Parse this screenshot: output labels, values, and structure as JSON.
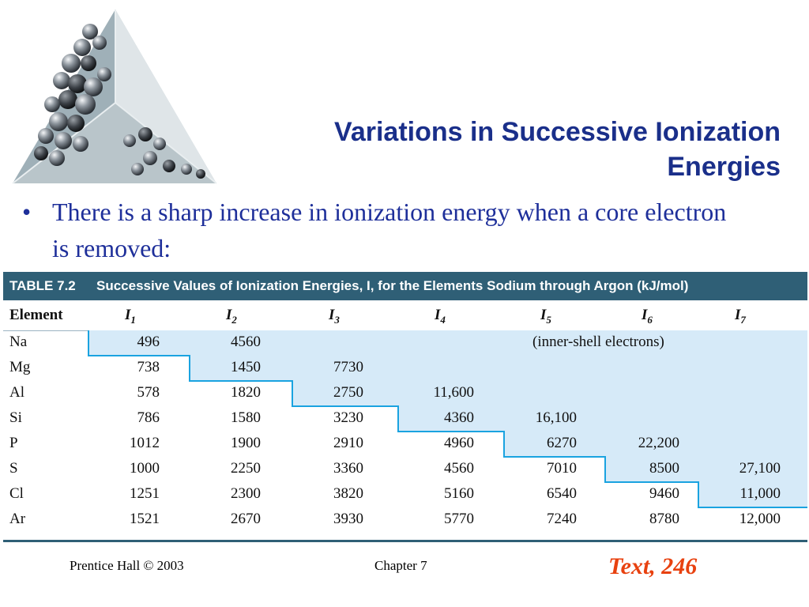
{
  "slide": {
    "title_line1": "Variations in Successive Ionization",
    "title_line2": "Energies",
    "bullet_symbol": "•",
    "bullet_text": "There is a sharp increase in ionization energy when a core electron is removed:"
  },
  "table": {
    "caption_number": "TABLE 7.2",
    "caption_text": "Successive Values of Ionization Energies, I, for the Elements Sodium through Argon (kJ/mol)",
    "columns": [
      "Element",
      "I1",
      "I2",
      "I3",
      "I4",
      "I5",
      "I6",
      "I7"
    ],
    "inner_shell_note": "(inner-shell electrons)",
    "rows": [
      {
        "element": "Na",
        "values": [
          "496",
          "4560",
          "",
          "",
          "",
          "",
          ""
        ]
      },
      {
        "element": "Mg",
        "values": [
          "738",
          "1450",
          "7730",
          "",
          "",
          "",
          ""
        ]
      },
      {
        "element": "Al",
        "values": [
          "578",
          "1820",
          "2750",
          "11,600",
          "",
          "",
          ""
        ]
      },
      {
        "element": "Si",
        "values": [
          "786",
          "1580",
          "3230",
          "4360",
          "16,100",
          "",
          ""
        ]
      },
      {
        "element": "P",
        "values": [
          "1012",
          "1900",
          "2910",
          "4960",
          "6270",
          "22,200",
          ""
        ]
      },
      {
        "element": "S",
        "values": [
          "1000",
          "2250",
          "3360",
          "4560",
          "7010",
          "8500",
          "27,100"
        ]
      },
      {
        "element": "Cl",
        "values": [
          "1251",
          "2300",
          "3820",
          "5160",
          "6540",
          "9460",
          "11,000"
        ]
      },
      {
        "element": "Ar",
        "values": [
          "1521",
          "2670",
          "3930",
          "5770",
          "7240",
          "8780",
          "12,000"
        ]
      }
    ],
    "inner_shell_start_column": [
      1,
      2,
      3,
      4,
      5,
      6,
      7,
      8
    ],
    "shade_color": "#d6eaf8",
    "step_line_color": "#1aa3e0",
    "header_band_color": "#2f5f76"
  },
  "footer": {
    "left": "Prentice Hall © 2003",
    "center": "Chapter 7",
    "right": "Text, 246"
  },
  "colors": {
    "title": "#1a2f8a",
    "bullet": "#1e2f9a",
    "reference": "#e8410f"
  }
}
